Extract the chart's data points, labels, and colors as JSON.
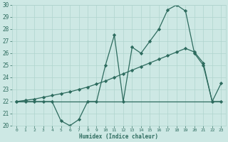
{
  "xlabel": "Humidex (Indice chaleur)",
  "xlim": [
    -0.5,
    23.5
  ],
  "ylim": [
    20,
    30
  ],
  "yticks": [
    20,
    21,
    22,
    23,
    24,
    25,
    26,
    27,
    28,
    29,
    30
  ],
  "xticks": [
    0,
    1,
    2,
    3,
    4,
    5,
    6,
    7,
    8,
    9,
    10,
    11,
    12,
    13,
    14,
    15,
    16,
    17,
    18,
    19,
    20,
    21,
    22,
    23
  ],
  "bg_color": "#cde8e4",
  "line_color": "#2d6b5e",
  "grid_color": "#b0d4ce",
  "line1_x": [
    0,
    1,
    2,
    3,
    4,
    5,
    6,
    7,
    8,
    9,
    10,
    11,
    12,
    13,
    14,
    15,
    16,
    17,
    18,
    19,
    20,
    21,
    22,
    23
  ],
  "line1_y": [
    22,
    22,
    22,
    22,
    22,
    20.4,
    20.0,
    20.5,
    22,
    22,
    25.0,
    27.5,
    22.0,
    26.5,
    26.0,
    27.0,
    28.0,
    29.6,
    30.0,
    29.5,
    26.0,
    25.0,
    22.0,
    23.5
  ],
  "line2_x": [
    0,
    23
  ],
  "line2_y": [
    22,
    22
  ],
  "line3_x": [
    0,
    1,
    2,
    3,
    4,
    5,
    6,
    7,
    8,
    9,
    10,
    11,
    12,
    13,
    14,
    15,
    16,
    17,
    18,
    19,
    20,
    21,
    22,
    23
  ],
  "line3_y": [
    22,
    22.1,
    22.2,
    22.35,
    22.5,
    22.65,
    22.8,
    23.0,
    23.2,
    23.45,
    23.7,
    24.0,
    24.3,
    24.6,
    24.9,
    25.2,
    25.5,
    25.8,
    26.1,
    26.4,
    26.1,
    25.2,
    22.0,
    22.0
  ],
  "marker": "D",
  "markersize": 2.2,
  "linewidth": 0.9
}
